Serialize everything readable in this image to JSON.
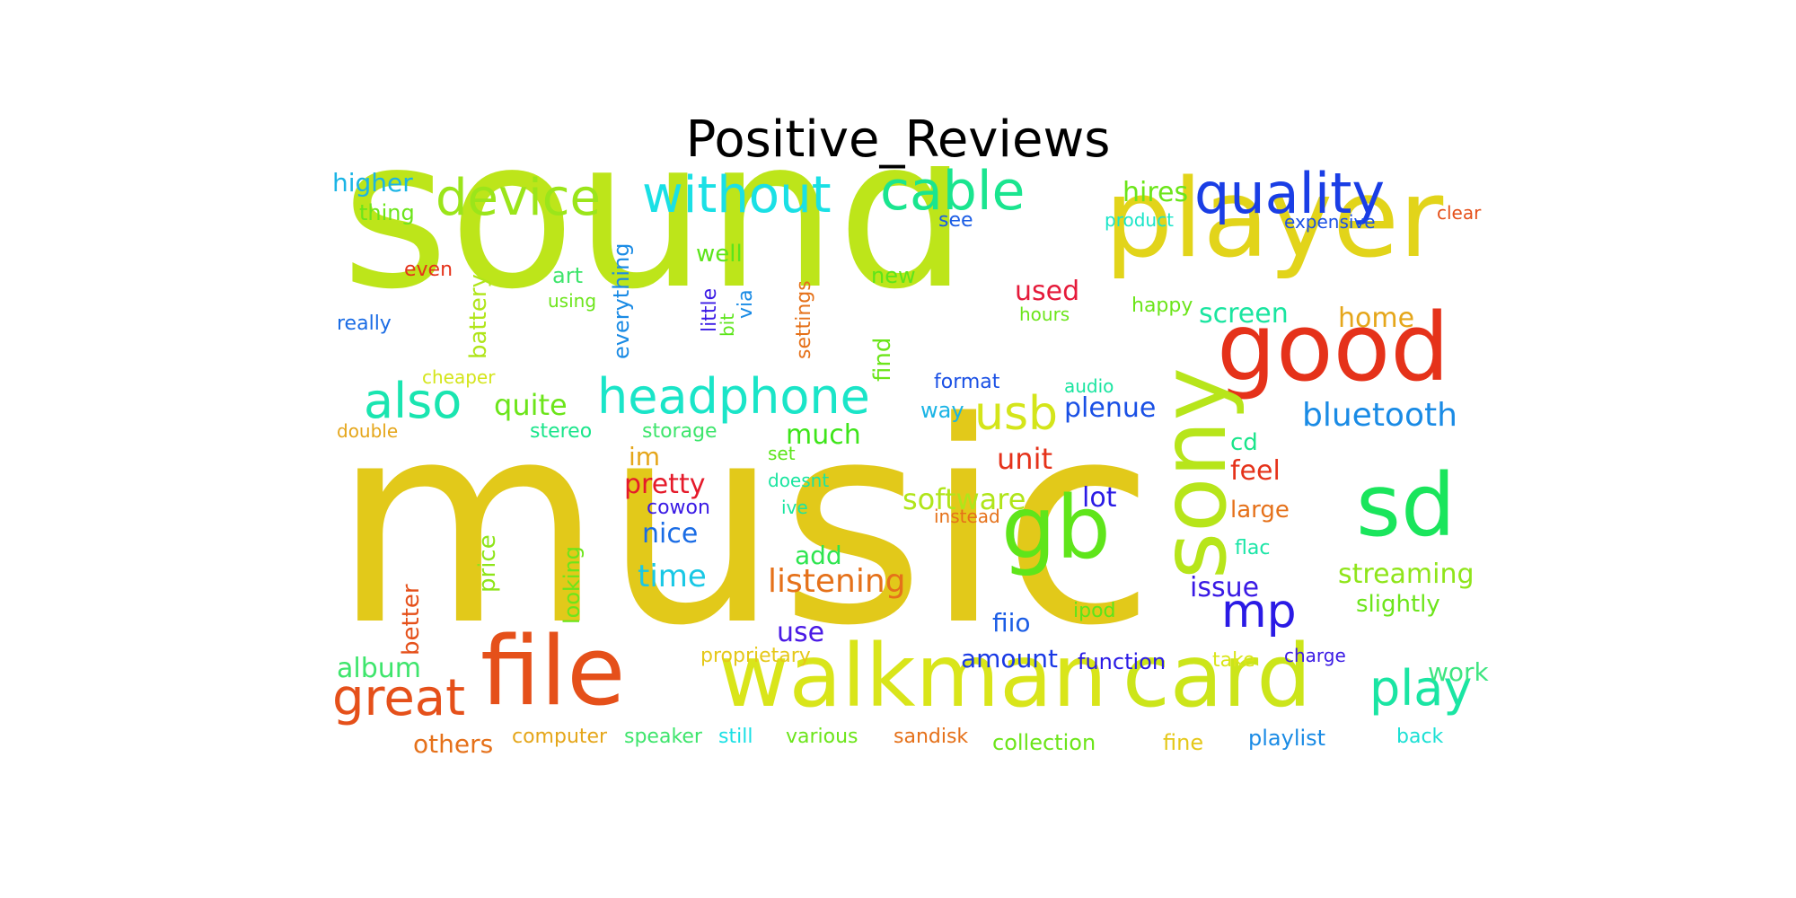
{
  "title": "Positive_Reviews",
  "words": [
    {
      "text": "music",
      "color": "#e2c91a"
    },
    {
      "text": "sound",
      "color": "#bde51a"
    },
    {
      "text": "player",
      "color": "#e2d41a"
    },
    {
      "text": "walkman",
      "color": "#d9e51a"
    },
    {
      "text": "card",
      "color": "#cce51a"
    },
    {
      "text": "file",
      "color": "#e5501a"
    },
    {
      "text": "good",
      "color": "#e5321a"
    },
    {
      "text": "sony",
      "color": "#b7e51a"
    },
    {
      "text": "gb",
      "color": "#5fe51a"
    },
    {
      "text": "sd",
      "color": "#1ae55c"
    },
    {
      "text": "quality",
      "color": "#1a3ee5"
    },
    {
      "text": "cable",
      "color": "#1ae58f"
    },
    {
      "text": "without",
      "color": "#1ae0e5"
    },
    {
      "text": "device",
      "color": "#9be51a"
    },
    {
      "text": "headphone",
      "color": "#1ae5c8"
    },
    {
      "text": "also",
      "color": "#1ae5b0"
    },
    {
      "text": "great",
      "color": "#e5501a"
    },
    {
      "text": "play",
      "color": "#1ae5a3"
    },
    {
      "text": "usb",
      "color": "#d4e51a"
    },
    {
      "text": "mp",
      "color": "#2a1ae5"
    },
    {
      "text": "bluetooth",
      "color": "#1a8be5"
    },
    {
      "text": "listening",
      "color": "#e5711a"
    },
    {
      "text": "streaming",
      "color": "#8fe51a"
    },
    {
      "text": "software",
      "color": "#b0e51a"
    },
    {
      "text": "quite",
      "color": "#6ce51a"
    },
    {
      "text": "time",
      "color": "#1ac8e5"
    },
    {
      "text": "issue",
      "color": "#3a1ae5"
    },
    {
      "text": "plenue",
      "color": "#1a50e5"
    },
    {
      "text": "pretty",
      "color": "#e51a2a"
    },
    {
      "text": "much",
      "color": "#3ee51a"
    },
    {
      "text": "screen",
      "color": "#1ae5a0"
    },
    {
      "text": "hires",
      "color": "#6ce51a"
    },
    {
      "text": "home",
      "color": "#e5a61a"
    },
    {
      "text": "unit",
      "color": "#e5321a"
    },
    {
      "text": "used",
      "color": "#e51a3a"
    },
    {
      "text": "nice",
      "color": "#1a6ce5"
    },
    {
      "text": "album",
      "color": "#3ee56c"
    },
    {
      "text": "amount",
      "color": "#1a3ae5"
    },
    {
      "text": "feel",
      "color": "#e5321a"
    },
    {
      "text": "lot",
      "color": "#2a1ae5"
    },
    {
      "text": "use",
      "color": "#4a1ae5"
    },
    {
      "text": "work",
      "color": "#3ee580"
    },
    {
      "text": "fiio",
      "color": "#1a5ce5"
    },
    {
      "text": "add",
      "color": "#2ee550"
    },
    {
      "text": "im",
      "color": "#e5a61a"
    },
    {
      "text": "slightly",
      "color": "#6ce51a"
    },
    {
      "text": "others",
      "color": "#e5711a"
    },
    {
      "text": "function",
      "color": "#2a1ae5"
    },
    {
      "text": "higher",
      "color": "#1ab4e5"
    },
    {
      "text": "large",
      "color": "#e5711a"
    },
    {
      "text": "cd",
      "color": "#1ae58b"
    },
    {
      "text": "playlist",
      "color": "#1a8be5"
    },
    {
      "text": "collection",
      "color": "#6ce51a"
    },
    {
      "text": "well",
      "color": "#5ce51a"
    },
    {
      "text": "battery",
      "color": "#b0e51a"
    },
    {
      "text": "price",
      "color": "#8fe51a"
    },
    {
      "text": "better",
      "color": "#e5501a"
    },
    {
      "text": "looking",
      "color": "#6ce51a"
    },
    {
      "text": "everything",
      "color": "#1a8be5"
    },
    {
      "text": "computer",
      "color": "#e5a61a"
    },
    {
      "text": "speaker",
      "color": "#3ee56c"
    },
    {
      "text": "sandisk",
      "color": "#e5711a"
    },
    {
      "text": "fine",
      "color": "#e5c81a"
    },
    {
      "text": "back",
      "color": "#1ae0d4"
    },
    {
      "text": "still",
      "color": "#1ae0e5"
    },
    {
      "text": "various",
      "color": "#6ce51a"
    },
    {
      "text": "proprietary",
      "color": "#e5c81a"
    },
    {
      "text": "cowon",
      "color": "#3a1ae5"
    },
    {
      "text": "flac",
      "color": "#1ae5a6"
    },
    {
      "text": "ipod",
      "color": "#5ce51a"
    },
    {
      "text": "take",
      "color": "#d9e51a"
    },
    {
      "text": "charge",
      "color": "#3a1ae5"
    },
    {
      "text": "thing",
      "color": "#6ce51a"
    },
    {
      "text": "see",
      "color": "#1a5ce5"
    },
    {
      "text": "product",
      "color": "#1ae5c8"
    },
    {
      "text": "expensive",
      "color": "#1a50e5"
    },
    {
      "text": "clear",
      "color": "#e5501a"
    },
    {
      "text": "even",
      "color": "#e5321a"
    },
    {
      "text": "art",
      "color": "#3ee56c"
    },
    {
      "text": "using",
      "color": "#6ce51a"
    },
    {
      "text": "new",
      "color": "#5ce51a"
    },
    {
      "text": "really",
      "color": "#1a6ce5"
    },
    {
      "text": "cheaper",
      "color": "#d4e51a"
    },
    {
      "text": "double",
      "color": "#e5a61a"
    },
    {
      "text": "stereo",
      "color": "#1ae58b"
    },
    {
      "text": "storage",
      "color": "#3ee56c"
    },
    {
      "text": "way",
      "color": "#1ab4e5"
    },
    {
      "text": "format",
      "color": "#1a50e5"
    },
    {
      "text": "audio",
      "color": "#1ae5a0"
    },
    {
      "text": "happy",
      "color": "#6ce51a"
    },
    {
      "text": "hours",
      "color": "#6ce51a"
    },
    {
      "text": "set",
      "color": "#5ce51a"
    },
    {
      "text": "doesnt",
      "color": "#1ae5a0"
    },
    {
      "text": "ive",
      "color": "#1ae5a0"
    },
    {
      "text": "instead",
      "color": "#e5711a"
    },
    {
      "text": "little",
      "color": "#3a1ae5"
    },
    {
      "text": "bit",
      "color": "#5ce51a"
    },
    {
      "text": "via",
      "color": "#1a8be5"
    },
    {
      "text": "settings",
      "color": "#e5711a"
    },
    {
      "text": "find",
      "color": "#6ce51a"
    }
  ]
}
